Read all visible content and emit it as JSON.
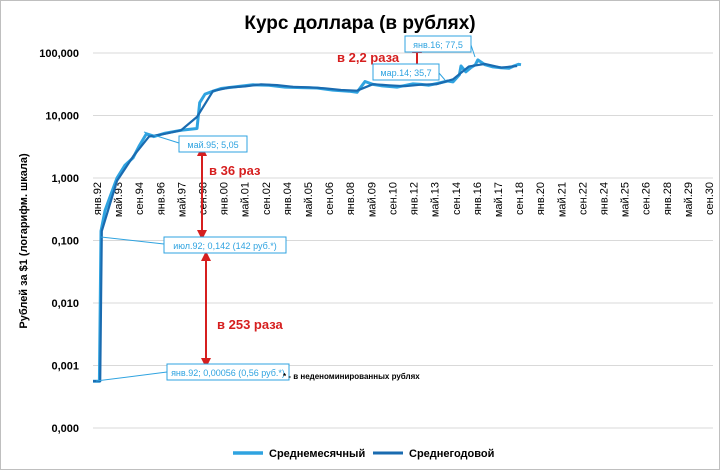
{
  "chart_data": {
    "type": "line",
    "title": "Курс доллара (в рублях)",
    "ylabel": "Рублей за $1 (логарифм. шкала)",
    "xlabel": "",
    "y_scale": "log",
    "ylim": [
      0.0001,
      100
    ],
    "y_ticks": [
      "0,000",
      "0,001",
      "0,010",
      "0,100",
      "1,000",
      "10,000",
      "100,000"
    ],
    "x_start": 1992.0,
    "x_end": 2030.75,
    "x_ticks": [
      "янв.92",
      "май.93",
      "сен.94",
      "янв.96",
      "май.97",
      "сен.98",
      "янв.00",
      "май.01",
      "сен.02",
      "янв.04",
      "май.05",
      "сен.06",
      "янв.08",
      "май.09",
      "сен.10",
      "янв.12",
      "май.13",
      "сен.14",
      "янв.16",
      "май.17",
      "сен.18",
      "янв.20",
      "май.21",
      "сен.22",
      "янв.24",
      "май.25",
      "сен.26",
      "янв.28",
      "май.29",
      "сен.30"
    ],
    "grid": true,
    "legend_position": "bottom",
    "series": [
      {
        "name": "Среднемесячный",
        "color": "#2fa3e0",
        "points": [
          [
            1992.0,
            0.00056
          ],
          [
            1992.4,
            0.00056
          ],
          [
            1992.5,
            0.142
          ],
          [
            1992.75,
            0.3
          ],
          [
            1993.0,
            0.45
          ],
          [
            1993.5,
            1.0
          ],
          [
            1994.0,
            1.6
          ],
          [
            1994.5,
            2.1
          ],
          [
            1994.9,
            3.3
          ],
          [
            1995.33,
            5.05
          ],
          [
            1995.8,
            4.6
          ],
          [
            1996.5,
            5.2
          ],
          [
            1997.5,
            5.8
          ],
          [
            1998.5,
            6.2
          ],
          [
            1998.67,
            16.0
          ],
          [
            1999.0,
            22.0
          ],
          [
            1999.5,
            24.5
          ],
          [
            2000.0,
            27.0
          ],
          [
            2001.0,
            29.0
          ],
          [
            2002.0,
            31.0
          ],
          [
            2003.0,
            30.5
          ],
          [
            2004.0,
            28.5
          ],
          [
            2005.0,
            28.0
          ],
          [
            2006.0,
            27.5
          ],
          [
            2007.0,
            25.5
          ],
          [
            2008.0,
            24.5
          ],
          [
            2008.5,
            23.5
          ],
          [
            2009.0,
            35.0
          ],
          [
            2009.5,
            31.5
          ],
          [
            2010.0,
            30.0
          ],
          [
            2011.0,
            28.5
          ],
          [
            2011.7,
            31.0
          ],
          [
            2012.0,
            32.0
          ],
          [
            2012.5,
            31.5
          ],
          [
            2013.0,
            30.5
          ],
          [
            2013.5,
            32.5
          ],
          [
            2014.17,
            35.7
          ],
          [
            2014.5,
            34.5
          ],
          [
            2014.9,
            45.0
          ],
          [
            2015.0,
            62.0
          ],
          [
            2015.3,
            50.0
          ],
          [
            2015.6,
            58.0
          ],
          [
            2015.9,
            65.0
          ],
          [
            2016.05,
            77.5
          ],
          [
            2016.5,
            65.0
          ],
          [
            2017.0,
            60.0
          ],
          [
            2017.5,
            58.0
          ],
          [
            2018.0,
            57.0
          ],
          [
            2018.3,
            62.0
          ],
          [
            2018.6,
            66.0
          ],
          [
            2018.75,
            65.0
          ]
        ]
      },
      {
        "name": "Среднегодовой",
        "color": "#1a6bb0",
        "points": [
          [
            1992.0,
            0.00056
          ],
          [
            1992.45,
            0.00056
          ],
          [
            1992.55,
            0.142
          ],
          [
            1993.5,
            0.9
          ],
          [
            1994.5,
            2.2
          ],
          [
            1995.5,
            4.6
          ],
          [
            1996.5,
            5.1
          ],
          [
            1997.5,
            5.8
          ],
          [
            1998.5,
            9.5
          ],
          [
            1999.5,
            24.6
          ],
          [
            2000.5,
            28.1
          ],
          [
            2001.5,
            29.2
          ],
          [
            2002.5,
            31.4
          ],
          [
            2003.5,
            30.7
          ],
          [
            2004.5,
            28.8
          ],
          [
            2005.5,
            28.3
          ],
          [
            2006.5,
            27.2
          ],
          [
            2007.5,
            25.6
          ],
          [
            2008.5,
            24.9
          ],
          [
            2009.5,
            31.7
          ],
          [
            2010.5,
            30.4
          ],
          [
            2011.5,
            29.4
          ],
          [
            2012.5,
            31.1
          ],
          [
            2013.5,
            31.8
          ],
          [
            2014.5,
            38.0
          ],
          [
            2015.5,
            61.0
          ],
          [
            2016.5,
            67.0
          ],
          [
            2017.5,
            58.3
          ],
          [
            2018.5,
            62.0
          ]
        ]
      }
    ],
    "callouts": {
      "jan92": "янв.92; 0,00056 (0,56 руб.*)",
      "jul92": "июл.92; 0,142 (142 руб.*)",
      "may95": "май.95; 5,05",
      "mar14": "мар.14; 35,7",
      "jan16": "янв.16; 77,5"
    },
    "annotations": {
      "ratio_253": "в 253 раза",
      "ratio_36": "в 36 раз",
      "ratio_2_2": "в 2,2 раза",
      "footnote": "* - в неденоминированных рублях"
    }
  }
}
